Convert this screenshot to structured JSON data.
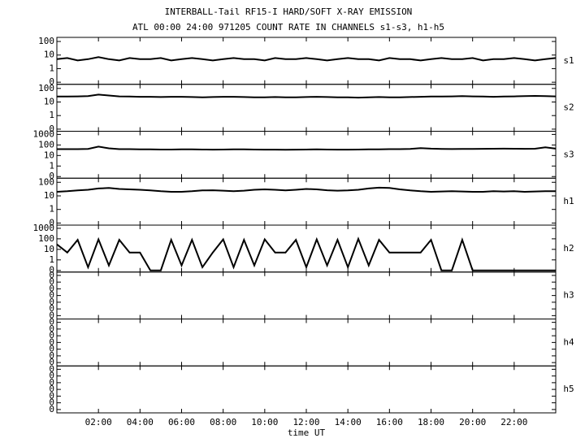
{
  "chart_data": {
    "type": "line",
    "title": "INTERBALL-Tail RF15-I HARD/SOFT X-RAY EMISSION",
    "subtitle": "ATL 00:00 24:00 971205  COUNT RATE IN CHANNELS s1-s3, h1-h5",
    "xlabel": "time UT",
    "xlim": [
      0,
      24
    ],
    "xticks": [
      {
        "value": 2,
        "label": "02:00"
      },
      {
        "value": 4,
        "label": "04:00"
      },
      {
        "value": 6,
        "label": "06:00"
      },
      {
        "value": 8,
        "label": "08:00"
      },
      {
        "value": 10,
        "label": "10:00"
      },
      {
        "value": 12,
        "label": "12:00"
      },
      {
        "value": 14,
        "label": "14:00"
      },
      {
        "value": 16,
        "label": "16:00"
      },
      {
        "value": 18,
        "label": "18:00"
      },
      {
        "value": 20,
        "label": "20:00"
      },
      {
        "value": 22,
        "label": "22:00"
      }
    ],
    "x": [
      0,
      0.5,
      1,
      1.5,
      2,
      2.5,
      3,
      3.5,
      4,
      4.5,
      5,
      5.5,
      6,
      6.5,
      7,
      7.5,
      8,
      8.5,
      9,
      9.5,
      10,
      10.5,
      11,
      11.5,
      12,
      12.5,
      13,
      13.5,
      14,
      14.5,
      15,
      15.5,
      16,
      16.5,
      17,
      17.5,
      18,
      18.5,
      19,
      19.5,
      20,
      20.5,
      21,
      21.5,
      22,
      22.5,
      23,
      23.5,
      24
    ],
    "color": "#000000",
    "panels": [
      {
        "name": "s1",
        "log": true,
        "ylim": [
          0.07,
          200
        ],
        "yticks": [
          100,
          10,
          1,
          {
            "value": 0.1,
            "label": "0"
          }
        ],
        "values": [
          5,
          6,
          4,
          5,
          7,
          5,
          4,
          6,
          5,
          5,
          6,
          4,
          5,
          6,
          5,
          4,
          5,
          6,
          5,
          5,
          4,
          6,
          5,
          5,
          6,
          5,
          4,
          5,
          6,
          5,
          5,
          4,
          6,
          5,
          5,
          4,
          5,
          6,
          5,
          5,
          6,
          4,
          5,
          5,
          6,
          5,
          4,
          5,
          6
        ]
      },
      {
        "name": "s2",
        "log": true,
        "ylim": [
          0.07,
          200
        ],
        "yticks": [
          100,
          10,
          1,
          {
            "value": 0.1,
            "label": "0"
          }
        ],
        "values": [
          25,
          25,
          26,
          27,
          35,
          30,
          26,
          25,
          24,
          24,
          23,
          24,
          24,
          23,
          22,
          23,
          24,
          24,
          23,
          22,
          22,
          23,
          22,
          22,
          23,
          24,
          23,
          22,
          22,
          21,
          22,
          23,
          22,
          22,
          23,
          24,
          25,
          25,
          26,
          27,
          26,
          25,
          24,
          25,
          26,
          27,
          28,
          27,
          26
        ]
      },
      {
        "name": "s3",
        "log": true,
        "ylim": [
          0.07,
          2000
        ],
        "yticks": [
          1000,
          100,
          10,
          1,
          {
            "value": 0.1,
            "label": "0"
          }
        ],
        "values": [
          40,
          40,
          40,
          42,
          70,
          48,
          40,
          40,
          38,
          38,
          37,
          37,
          38,
          38,
          37,
          36,
          37,
          38,
          38,
          37,
          36,
          36,
          35,
          36,
          37,
          38,
          37,
          36,
          36,
          37,
          38,
          39,
          40,
          40,
          42,
          50,
          45,
          42,
          41,
          42,
          42,
          43,
          44,
          45,
          44,
          43,
          44,
          60,
          45
        ]
      },
      {
        "name": "h1",
        "log": true,
        "ylim": [
          0.07,
          200
        ],
        "yticks": [
          100,
          10,
          1,
          {
            "value": 0.1,
            "label": "0"
          }
        ],
        "values": [
          20,
          22,
          25,
          28,
          35,
          38,
          32,
          30,
          28,
          25,
          22,
          20,
          20,
          22,
          25,
          26,
          24,
          22,
          24,
          28,
          30,
          28,
          25,
          28,
          32,
          30,
          26,
          24,
          25,
          28,
          35,
          40,
          38,
          30,
          25,
          22,
          20,
          21,
          22,
          21,
          20,
          20,
          22,
          21,
          22,
          20,
          21,
          22,
          22
        ]
      },
      {
        "name": "h2",
        "log": true,
        "ylim": [
          0.07,
          2000
        ],
        "yticks": [
          1000,
          100,
          10,
          1,
          {
            "value": 0.1,
            "label": "0"
          }
        ],
        "values": [
          30,
          5,
          80,
          0.2,
          90,
          0.3,
          80,
          5,
          5,
          0.1,
          0.1,
          80,
          0.3,
          80,
          0.2,
          5,
          90,
          0.2,
          80,
          0.3,
          90,
          5,
          5,
          80,
          0.2,
          90,
          0.3,
          80,
          0.2,
          100,
          0.3,
          80,
          5,
          5,
          5,
          5,
          80,
          0.1,
          0.1,
          80,
          0.1,
          0.1,
          0.1,
          0.1,
          0.1,
          0.1,
          0.1,
          0.1,
          0.1
        ]
      },
      {
        "name": "h3",
        "log": false,
        "ylim": [
          -0.5,
          6.5
        ],
        "yticks": [
          {
            "value": 0,
            "label": "0"
          },
          {
            "value": 1,
            "label": "0"
          },
          {
            "value": 2,
            "label": "0"
          },
          {
            "value": 3,
            "label": "0"
          },
          {
            "value": 4,
            "label": "0"
          },
          {
            "value": 5,
            "label": "0"
          },
          {
            "value": 6,
            "label": "0"
          }
        ]
      },
      {
        "name": "h4",
        "log": false,
        "ylim": [
          -0.5,
          6.5
        ],
        "yticks": [
          {
            "value": 0,
            "label": "0"
          },
          {
            "value": 1,
            "label": "0"
          },
          {
            "value": 2,
            "label": "0"
          },
          {
            "value": 3,
            "label": "0"
          },
          {
            "value": 4,
            "label": "0"
          },
          {
            "value": 5,
            "label": "0"
          },
          {
            "value": 6,
            "label": "0"
          }
        ]
      },
      {
        "name": "h5",
        "log": false,
        "ylim": [
          -0.5,
          6.5
        ],
        "yticks": [
          {
            "value": 0,
            "label": "0"
          },
          {
            "value": 1,
            "label": "0"
          },
          {
            "value": 2,
            "label": "0"
          },
          {
            "value": 3,
            "label": "0"
          },
          {
            "value": 4,
            "label": "0"
          },
          {
            "value": 5,
            "label": "0"
          },
          {
            "value": 6,
            "label": "0"
          }
        ]
      }
    ]
  }
}
